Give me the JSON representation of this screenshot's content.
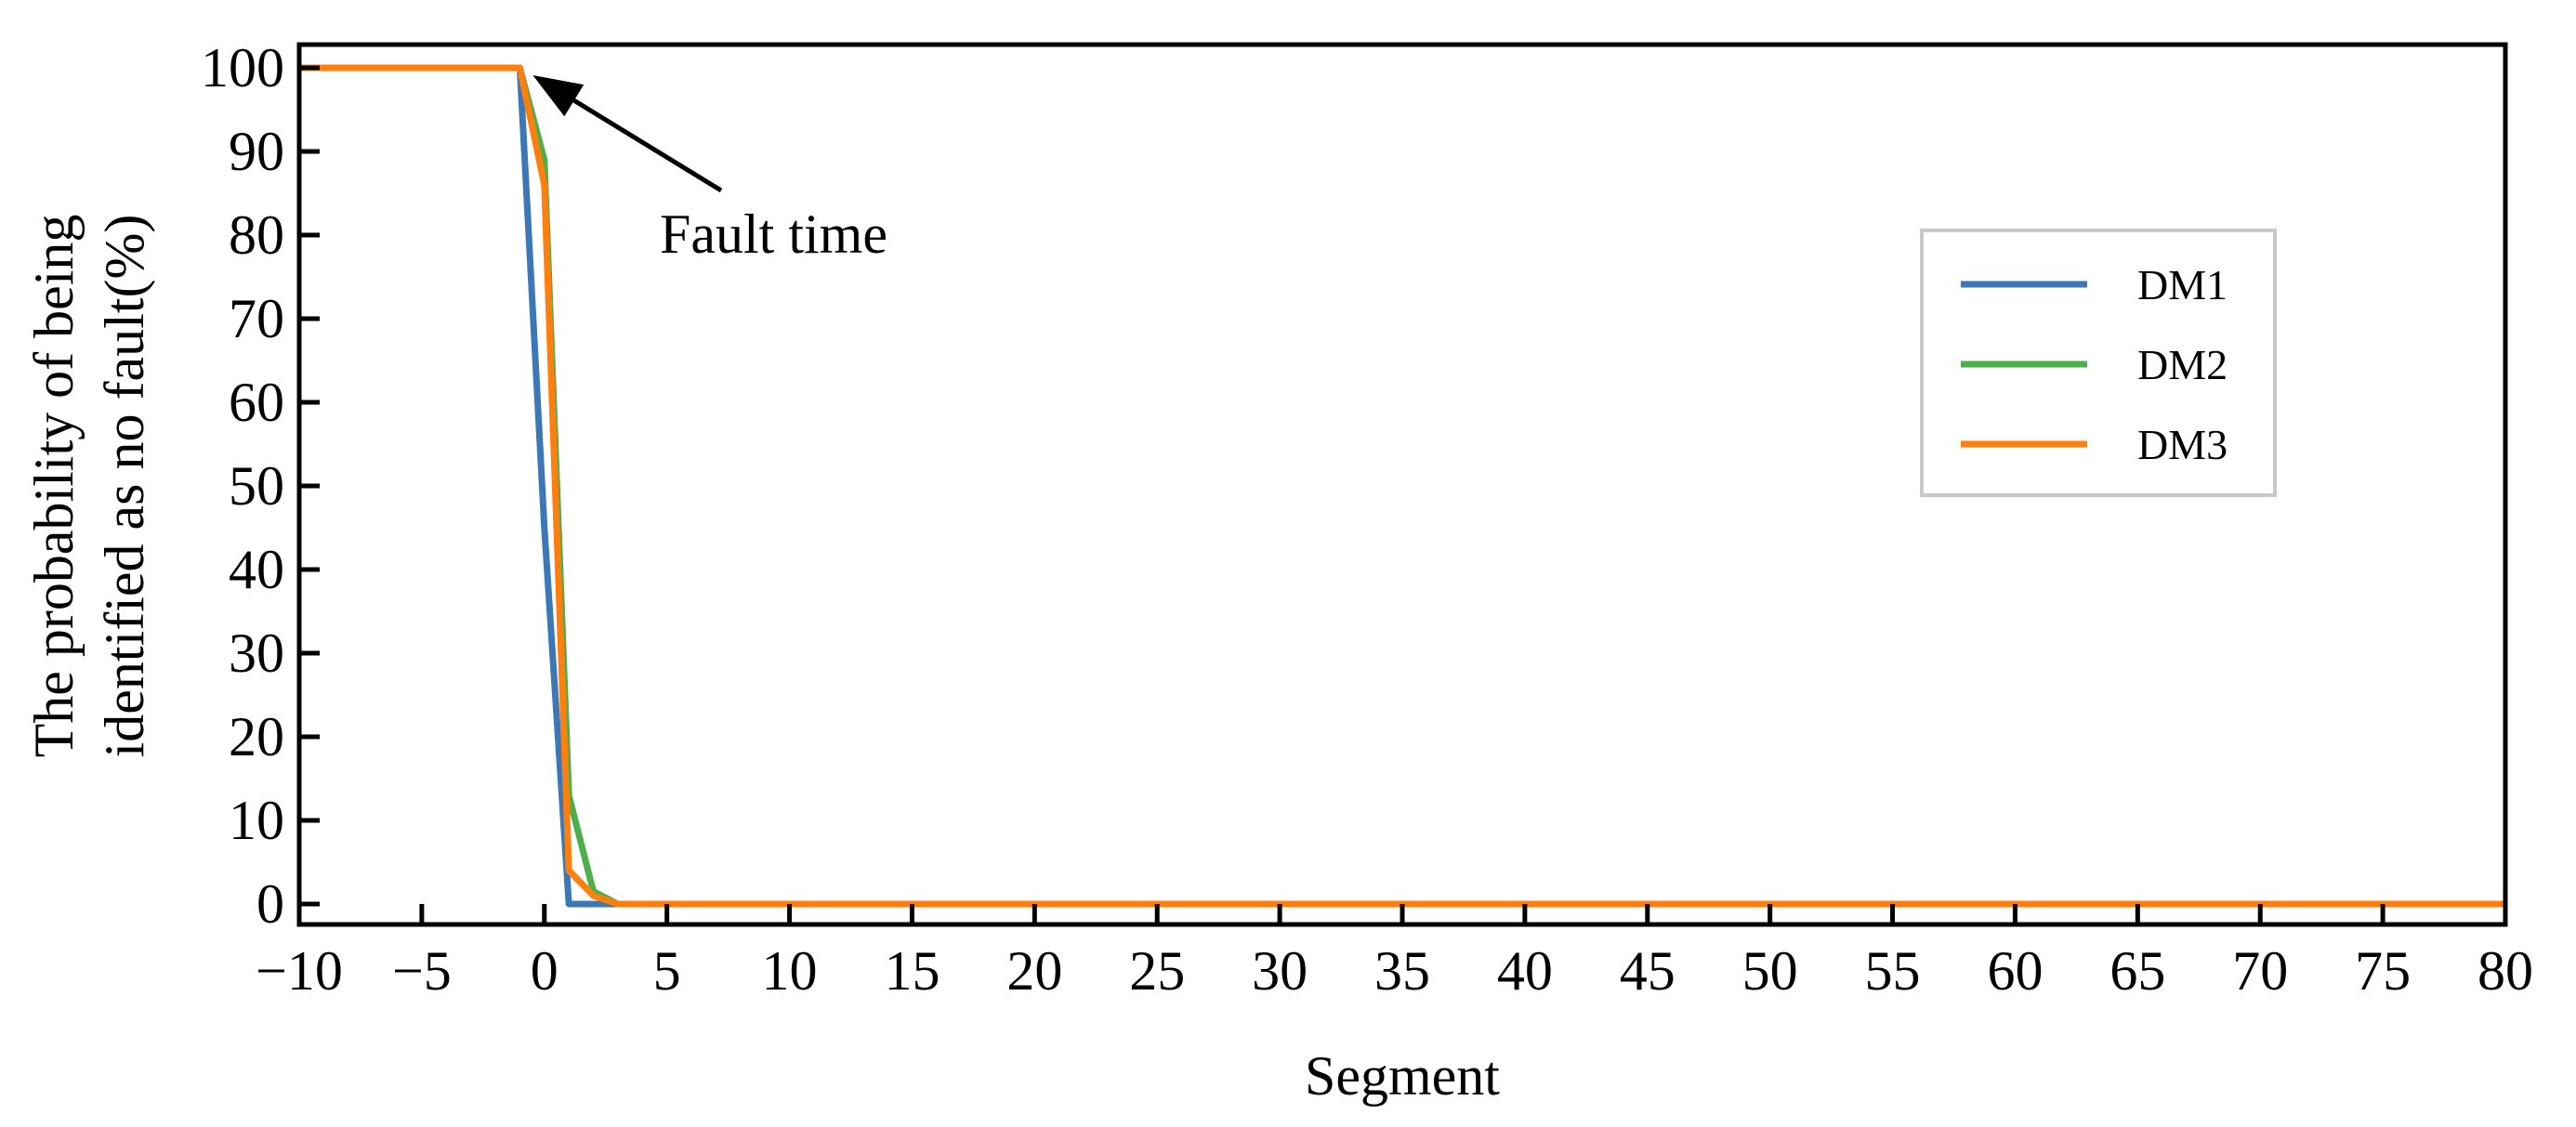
{
  "chart_data": {
    "type": "line",
    "title": "",
    "xlabel": "Segment",
    "ylabel_lines": [
      "The probability of being",
      "identified as no fault(%)"
    ],
    "xlim": [
      -10,
      80
    ],
    "ylim": [
      0,
      100
    ],
    "xticks": [
      -10,
      -5,
      0,
      5,
      10,
      15,
      20,
      25,
      30,
      35,
      40,
      45,
      50,
      55,
      60,
      65,
      70,
      75,
      80
    ],
    "xtick_labels": [
      "−10",
      "−5",
      "0",
      "5",
      "10",
      "15",
      "20",
      "25",
      "30",
      "35",
      "40",
      "45",
      "50",
      "55",
      "60",
      "65",
      "70",
      "75",
      "80"
    ],
    "yticks": [
      0,
      10,
      20,
      30,
      40,
      50,
      60,
      70,
      80,
      90,
      100
    ],
    "ytick_labels": [
      "0",
      "10",
      "20",
      "30",
      "40",
      "50",
      "60",
      "70",
      "80",
      "90",
      "100"
    ],
    "grid": false,
    "legend": {
      "position": "right",
      "entries": [
        "DM1",
        "DM2",
        "DM3"
      ]
    },
    "series": [
      {
        "name": "DM1",
        "color": "#3b78b5",
        "x": [
          -10,
          -1,
          0,
          1,
          2,
          3,
          80
        ],
        "y": [
          100,
          100,
          45,
          0,
          0,
          0,
          0
        ]
      },
      {
        "name": "DM2",
        "color": "#4daf4a",
        "x": [
          -10,
          -1,
          0,
          1,
          2,
          3,
          80
        ],
        "y": [
          100,
          100,
          89,
          13,
          1.5,
          0,
          0
        ]
      },
      {
        "name": "DM3",
        "color": "#ff7f0e",
        "x": [
          -10,
          -1,
          0,
          1,
          2,
          3,
          80
        ],
        "y": [
          100,
          100,
          86,
          4,
          1,
          0,
          0
        ]
      }
    ],
    "annotations": [
      {
        "text": "Fault time",
        "arrow_to": [
          -1,
          100
        ]
      }
    ]
  }
}
